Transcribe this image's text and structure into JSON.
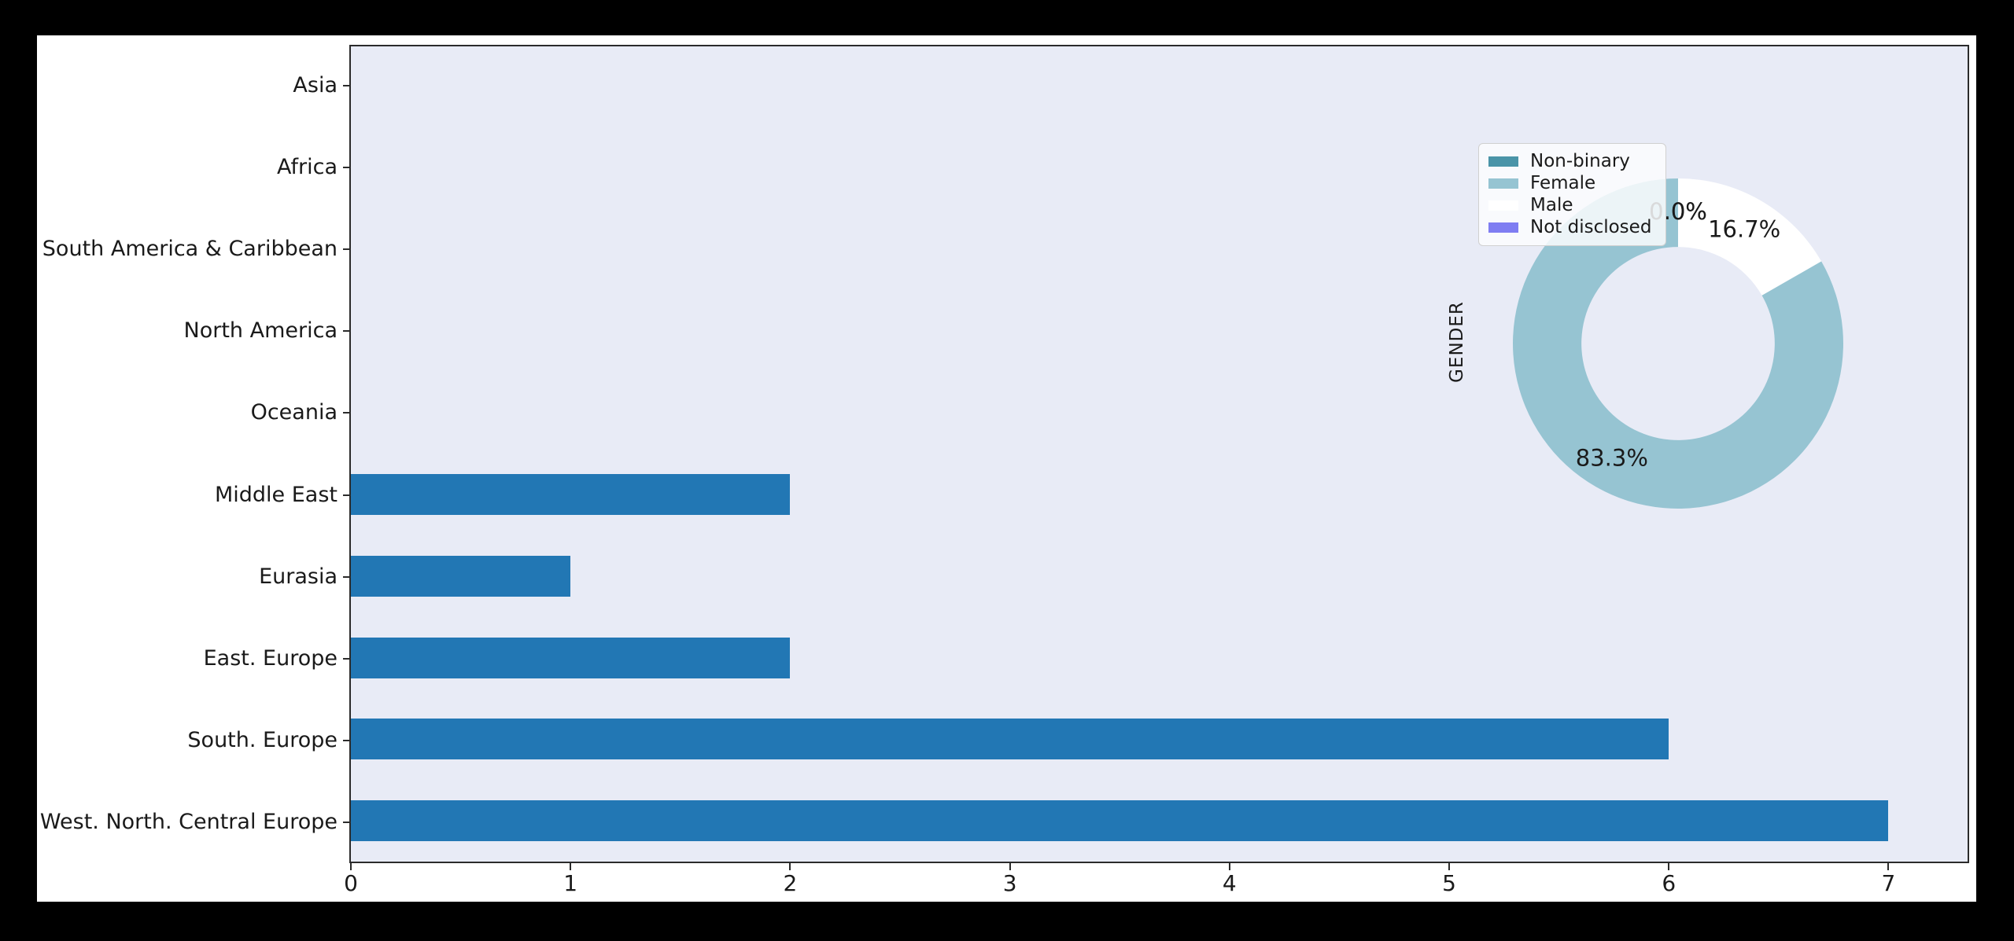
{
  "figure": {
    "page_background": "#000000",
    "figure_background": "#ffffff",
    "plot_background": "#e8ebf6",
    "spine_color": "#2b2b2b"
  },
  "chart_data": [
    {
      "type": "bar",
      "orientation": "horizontal",
      "title": "",
      "xlabel": "",
      "ylabel": "",
      "categories": [
        "Asia",
        "Africa",
        "South America & Caribbean",
        "North America",
        "Oceania",
        "Middle East",
        "Eurasia",
        "East. Europe",
        "South. Europe",
        "West. North. Central Europe"
      ],
      "values": [
        0,
        0,
        0,
        0,
        0,
        2,
        1,
        2,
        6,
        7
      ],
      "bar_color": "#2277b4",
      "xticks": [
        "0",
        "1",
        "2",
        "3",
        "4",
        "5",
        "6",
        "7"
      ],
      "xlim": [
        0,
        7.36
      ],
      "grid": false,
      "legend_position": "none"
    },
    {
      "type": "pie",
      "style": "donut",
      "title": "GENDER",
      "donut_hole_ratio": 0.585,
      "start_angle": 90,
      "counterclockwise": true,
      "legend_position": "upper left",
      "slices": [
        {
          "label": "Non-binary",
          "pct": 0.0,
          "pct_label": "0.0%",
          "color": "#4a94a8"
        },
        {
          "label": "Female",
          "pct": 83.3,
          "pct_label": "83.3%",
          "color": "#96c4d2"
        },
        {
          "label": "Male",
          "pct": 16.7,
          "pct_label": "16.7%",
          "color": "#ffffff"
        },
        {
          "label": "Not disclosed",
          "pct": 0.0,
          "pct_label": "0.0%",
          "color": "#7f7df2"
        }
      ]
    }
  ]
}
